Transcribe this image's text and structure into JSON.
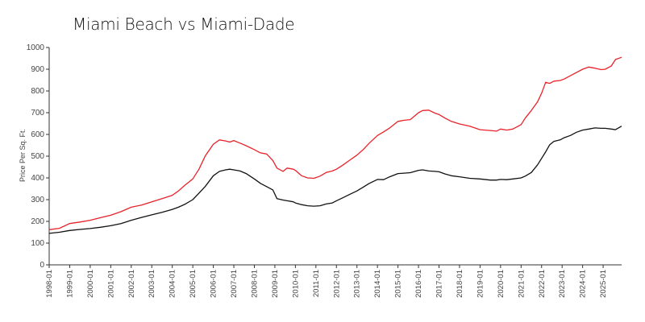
{
  "chart_data": {
    "type": "line",
    "title": "Miami Beach vs Miami-Dade",
    "xlabel": "",
    "ylabel": "Price Per Sq. Ft.",
    "ylim": [
      0,
      1000
    ],
    "xlim": [
      1998.0,
      2025.9
    ],
    "y_ticks": [
      0,
      100,
      200,
      300,
      400,
      500,
      600,
      700,
      800,
      900,
      1000
    ],
    "x_ticks": [
      "1998-01",
      "1999-01",
      "2000-01",
      "2001-01",
      "2002-01",
      "2003-01",
      "2004-01",
      "2005-01",
      "2006-01",
      "2007-01",
      "2008-01",
      "2009-01",
      "2010-01",
      "2011-01",
      "2012-01",
      "2013-01",
      "2014-01",
      "2015-01",
      "2016-01",
      "2017-01",
      "2018-01",
      "2019-01",
      "2020-01",
      "2021-01",
      "2022-01",
      "2023-01",
      "2024-01",
      "2025-01"
    ],
    "grid": false,
    "legend": "none",
    "series": [
      {
        "name": "Miami Beach",
        "color": "#e8222a",
        "x": [
          1998.0,
          1998.5,
          1999.0,
          1999.5,
          2000.0,
          2000.5,
          2001.0,
          2001.5,
          2002.0,
          2002.5,
          2003.0,
          2003.5,
          2004.0,
          2004.3,
          2004.6,
          2005.0,
          2005.3,
          2005.6,
          2006.0,
          2006.3,
          2006.6,
          2006.8,
          2007.0,
          2007.3,
          2007.6,
          2008.0,
          2008.3,
          2008.6,
          2008.9,
          2009.1,
          2009.4,
          2009.6,
          2009.9,
          2010.0,
          2010.3,
          2010.6,
          2010.9,
          2011.2,
          2011.5,
          2011.8,
          2012.0,
          2012.3,
          2012.6,
          2013.0,
          2013.3,
          2013.6,
          2014.0,
          2014.3,
          2014.6,
          2015.0,
          2015.3,
          2015.6,
          2016.0,
          2016.2,
          2016.5,
          2016.8,
          2017.0,
          2017.3,
          2017.6,
          2018.0,
          2018.5,
          2019.0,
          2019.5,
          2019.8,
          2020.0,
          2020.3,
          2020.6,
          2021.0,
          2021.2,
          2021.5,
          2021.8,
          2022.0,
          2022.2,
          2022.4,
          2022.6,
          2022.9,
          2023.1,
          2023.4,
          2023.7,
          2024.0,
          2024.3,
          2024.6,
          2024.9,
          2025.1,
          2025.4,
          2025.6,
          2025.9
        ],
        "values": [
          162,
          168,
          190,
          197,
          205,
          217,
          228,
          245,
          265,
          275,
          290,
          305,
          320,
          340,
          365,
          395,
          440,
          500,
          555,
          575,
          570,
          565,
          572,
          560,
          548,
          530,
          515,
          510,
          480,
          445,
          430,
          445,
          440,
          435,
          410,
          400,
          398,
          408,
          425,
          432,
          440,
          458,
          478,
          505,
          530,
          560,
          595,
          612,
          630,
          660,
          665,
          668,
          700,
          710,
          712,
          698,
          692,
          675,
          660,
          648,
          638,
          622,
          618,
          615,
          625,
          620,
          625,
          645,
          675,
          710,
          750,
          790,
          840,
          835,
          845,
          848,
          855,
          870,
          885,
          900,
          910,
          905,
          898,
          900,
          915,
          945,
          955
        ]
      },
      {
        "name": "Miami-Dade",
        "color": "#111111",
        "x": [
          1998.0,
          1998.5,
          1999.0,
          1999.5,
          2000.0,
          2000.5,
          2001.0,
          2001.5,
          2002.0,
          2002.5,
          2003.0,
          2003.5,
          2004.0,
          2004.3,
          2004.6,
          2005.0,
          2005.3,
          2005.6,
          2006.0,
          2006.3,
          2006.6,
          2006.8,
          2007.0,
          2007.3,
          2007.6,
          2008.0,
          2008.3,
          2008.6,
          2008.9,
          2009.1,
          2009.4,
          2009.6,
          2009.9,
          2010.0,
          2010.3,
          2010.6,
          2010.9,
          2011.2,
          2011.5,
          2011.8,
          2012.0,
          2012.3,
          2012.6,
          2013.0,
          2013.3,
          2013.6,
          2014.0,
          2014.3,
          2014.6,
          2015.0,
          2015.3,
          2015.6,
          2016.0,
          2016.2,
          2016.5,
          2016.8,
          2017.0,
          2017.3,
          2017.6,
          2018.0,
          2018.5,
          2019.0,
          2019.5,
          2019.8,
          2020.0,
          2020.3,
          2020.6,
          2021.0,
          2021.2,
          2021.5,
          2021.8,
          2022.0,
          2022.2,
          2022.4,
          2022.6,
          2022.9,
          2023.1,
          2023.4,
          2023.7,
          2024.0,
          2024.3,
          2024.6,
          2024.9,
          2025.1,
          2025.4,
          2025.6,
          2025.9
        ],
        "values": [
          145,
          150,
          158,
          163,
          167,
          173,
          180,
          190,
          205,
          218,
          230,
          242,
          255,
          265,
          278,
          300,
          330,
          360,
          410,
          430,
          437,
          440,
          437,
          432,
          420,
          395,
          375,
          360,
          345,
          305,
          298,
          295,
          290,
          285,
          277,
          272,
          270,
          272,
          280,
          285,
          295,
          308,
          322,
          340,
          357,
          375,
          393,
          392,
          405,
          420,
          422,
          424,
          435,
          437,
          432,
          430,
          428,
          418,
          410,
          405,
          398,
          395,
          390,
          390,
          393,
          392,
          395,
          400,
          408,
          425,
          460,
          490,
          520,
          553,
          568,
          575,
          585,
          595,
          610,
          620,
          625,
          630,
          628,
          628,
          625,
          622,
          638
        ]
      }
    ]
  }
}
